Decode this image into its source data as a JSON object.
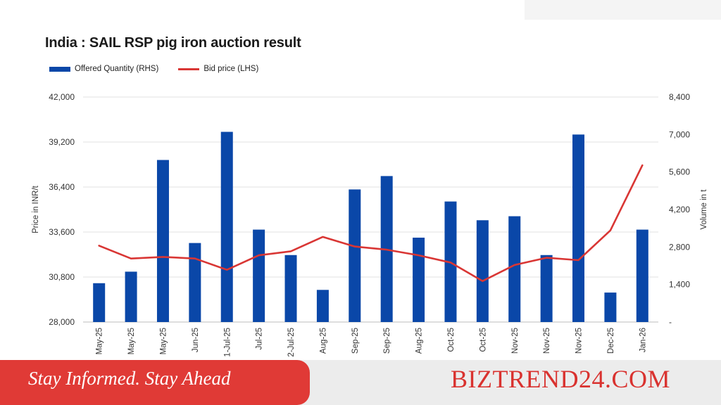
{
  "chart_data": {
    "type": "bar+line",
    "title": "India : SAIL RSP pig iron auction result",
    "legend": {
      "placement": "top-left",
      "entries": [
        "Offered Quantity (RHS)",
        "Bid price (LHS)"
      ]
    },
    "categories": [
      "May-25",
      "May-25",
      "May-25",
      "Jun-25",
      "1-Jul-25",
      "Jul-25",
      "2-Jul-25",
      "Aug-25",
      "Sep-25",
      "Sep-25",
      "Aug-25",
      "Oct-25",
      "Oct-25",
      "Nov-25",
      "Nov-25",
      "Nov-25",
      "Dec-25",
      "Jan-26"
    ],
    "series": [
      {
        "name": "Offered Quantity (RHS)",
        "type": "bar",
        "axis": "right",
        "color": "#0a47a8",
        "values": [
          1450,
          1880,
          6050,
          2950,
          7100,
          3450,
          2500,
          1200,
          4950,
          5450,
          3150,
          4500,
          3800,
          3950,
          2500,
          7000,
          1100,
          3450
        ]
      },
      {
        "name": "Bid price (LHS)",
        "type": "line",
        "axis": "left",
        "color": "#d93634",
        "values": [
          32750,
          31950,
          32050,
          31950,
          31250,
          32150,
          32400,
          33300,
          32700,
          32500,
          32150,
          31700,
          30550,
          31550,
          32000,
          31850,
          33700,
          37750
        ]
      }
    ],
    "ylabel_left": "Price in INR/t",
    "ylabel_right": "Volume in t",
    "ylim_left": [
      28000,
      42000
    ],
    "ylim_right": [
      0,
      8400
    ],
    "yticks_left": [
      "42,000",
      "39,200",
      "36,400",
      "33,600",
      "30,800",
      "28,000"
    ],
    "yticks_right": [
      "8,400",
      "7,000",
      "5,600",
      "4,200",
      "2,800",
      "1,400",
      "-"
    ],
    "grid": true
  },
  "footer": {
    "slogan": "Stay Informed. Stay Ahead",
    "brand": "BIZTREND24.COM"
  }
}
